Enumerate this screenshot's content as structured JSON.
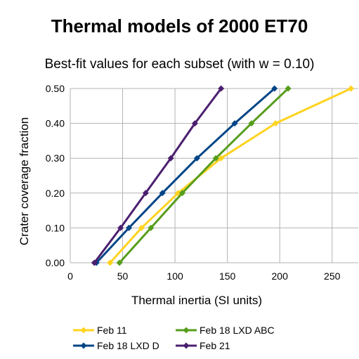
{
  "chart_data": {
    "type": "line",
    "title": "Thermal models of 2000 ET70",
    "subtitle": "Best-fit values for each subset (with w = 0.10)",
    "xlabel": "Thermal inertia (SI units)",
    "ylabel": "Crater coverage fraction",
    "xlim": [
      0,
      275
    ],
    "ylim": [
      0,
      0.5
    ],
    "x_ticks": [
      "0",
      "50",
      "100",
      "150",
      "200",
      "250"
    ],
    "y_ticks": [
      "0.00",
      "0.10",
      "0.20",
      "0.30",
      "0.40",
      "0.50"
    ],
    "grid": true,
    "legend_position": "bottom",
    "series": [
      {
        "name": "Feb 11",
        "color": "#FFD320",
        "points": [
          [
            38,
            0.0
          ],
          [
            68,
            0.1
          ],
          [
            103,
            0.2
          ],
          [
            144,
            0.3
          ],
          [
            196,
            0.4
          ],
          [
            268,
            0.5
          ]
        ]
      },
      {
        "name": "Feb 18 LXD ABC",
        "color": "#579D1C",
        "points": [
          [
            47,
            0.0
          ],
          [
            77,
            0.1
          ],
          [
            107,
            0.2
          ],
          [
            139,
            0.3
          ],
          [
            173,
            0.4
          ],
          [
            208,
            0.5
          ]
        ]
      },
      {
        "name": "Feb 18 LXD D",
        "color": "#004586",
        "points": [
          [
            25,
            0.0
          ],
          [
            56,
            0.1
          ],
          [
            88,
            0.2
          ],
          [
            121,
            0.3
          ],
          [
            157,
            0.4
          ],
          [
            195,
            0.5
          ]
        ]
      },
      {
        "name": "Feb 21",
        "color": "#4B1F6F",
        "points": [
          [
            23,
            0.0
          ],
          [
            48,
            0.1
          ],
          [
            72,
            0.2
          ],
          [
            96,
            0.3
          ],
          [
            119,
            0.4
          ],
          [
            144,
            0.5
          ]
        ]
      }
    ]
  }
}
